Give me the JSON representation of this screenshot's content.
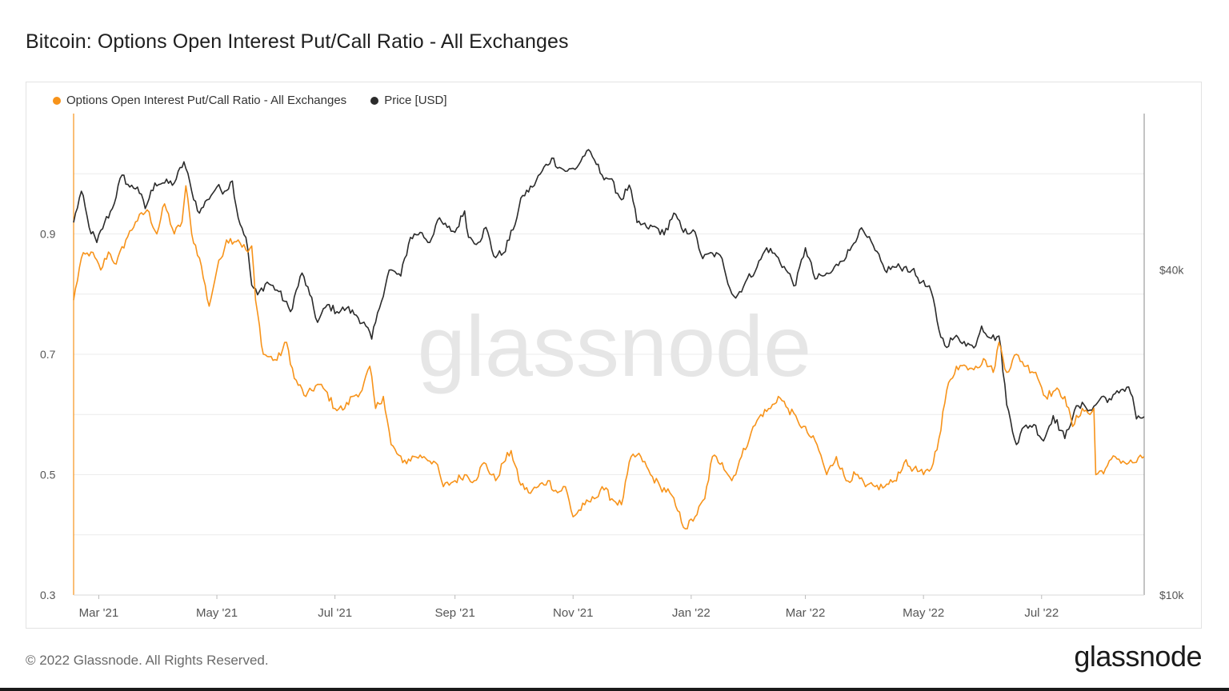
{
  "title": "Bitcoin: Options Open Interest Put/Call Ratio - All Exchanges",
  "footer": {
    "copyright": "© 2022 Glassnode. All Rights Reserved.",
    "logo": "glassnode"
  },
  "watermark": "glassnode",
  "colors": {
    "ratio": "#f7931a",
    "price": "#2b2b2b",
    "grid": "#ececec",
    "watermark": "#e6e6e6"
  },
  "chart_data": {
    "type": "line",
    "title": "Bitcoin: Options Open Interest Put/Call Ratio - All Exchanges",
    "legend": [
      "Options Open Interest Put/Call Ratio - All Exchanges",
      "Price [USD]"
    ],
    "legend_position": "top-left",
    "grid": true,
    "x_range": [
      "2021-02-16",
      "2022-08-23"
    ],
    "x_ticks": [
      {
        "date": "2021-03-01",
        "label": "Mar '21"
      },
      {
        "date": "2021-05-01",
        "label": "May '21"
      },
      {
        "date": "2021-07-01",
        "label": "Jul '21"
      },
      {
        "date": "2021-09-01",
        "label": "Sep '21"
      },
      {
        "date": "2021-11-01",
        "label": "Nov '21"
      },
      {
        "date": "2022-01-01",
        "label": "Jan '22"
      },
      {
        "date": "2022-03-01",
        "label": "Mar '22"
      },
      {
        "date": "2022-05-01",
        "label": "May '22"
      },
      {
        "date": "2022-07-01",
        "label": "Jul '22"
      }
    ],
    "y_left": {
      "ticks": [
        0.3,
        0.5,
        0.7,
        0.9
      ],
      "tick_labels": [
        "0.3",
        "0.5",
        "0.7",
        "0.9"
      ],
      "ylim": [
        0.3,
        1.1
      ]
    },
    "y_right": {
      "scale": "log",
      "ticks": [
        10000,
        40000
      ],
      "tick_labels": [
        "$10k",
        "$40k"
      ],
      "ylim": [
        10000,
        78000
      ]
    },
    "series": [
      {
        "name": "Options Open Interest Put/Call Ratio - All Exchanges",
        "axis": "left",
        "points": [
          [
            "2021-02-16",
            0.79
          ],
          [
            "2021-02-20",
            0.86
          ],
          [
            "2021-02-25",
            0.87
          ],
          [
            "2021-03-02",
            0.84
          ],
          [
            "2021-03-06",
            0.87
          ],
          [
            "2021-03-10",
            0.85
          ],
          [
            "2021-03-15",
            0.89
          ],
          [
            "2021-03-20",
            0.92
          ],
          [
            "2021-03-26",
            0.94
          ],
          [
            "2021-03-31",
            0.9
          ],
          [
            "2021-04-04",
            0.95
          ],
          [
            "2021-04-09",
            0.9
          ],
          [
            "2021-04-13",
            0.92
          ],
          [
            "2021-04-15",
            0.98
          ],
          [
            "2021-04-18",
            0.9
          ],
          [
            "2021-04-22",
            0.86
          ],
          [
            "2021-04-27",
            0.78
          ],
          [
            "2021-05-01",
            0.84
          ],
          [
            "2021-05-06",
            0.89
          ],
          [
            "2021-05-12",
            0.89
          ],
          [
            "2021-05-17",
            0.87
          ],
          [
            "2021-05-19",
            0.88
          ],
          [
            "2021-05-21",
            0.79
          ],
          [
            "2021-05-25",
            0.7
          ],
          [
            "2021-06-01",
            0.69
          ],
          [
            "2021-06-06",
            0.72
          ],
          [
            "2021-06-10",
            0.66
          ],
          [
            "2021-06-16",
            0.63
          ],
          [
            "2021-06-22",
            0.65
          ],
          [
            "2021-06-26",
            0.64
          ],
          [
            "2021-07-01",
            0.61
          ],
          [
            "2021-07-06",
            0.61
          ],
          [
            "2021-07-10",
            0.63
          ],
          [
            "2021-07-15",
            0.64
          ],
          [
            "2021-07-19",
            0.68
          ],
          [
            "2021-07-22",
            0.61
          ],
          [
            "2021-07-26",
            0.63
          ],
          [
            "2021-07-30",
            0.55
          ],
          [
            "2021-08-05",
            0.52
          ],
          [
            "2021-08-11",
            0.53
          ],
          [
            "2021-08-16",
            0.53
          ],
          [
            "2021-08-22",
            0.52
          ],
          [
            "2021-08-26",
            0.48
          ],
          [
            "2021-09-01",
            0.49
          ],
          [
            "2021-09-06",
            0.5
          ],
          [
            "2021-09-11",
            0.49
          ],
          [
            "2021-09-16",
            0.52
          ],
          [
            "2021-09-22",
            0.49
          ],
          [
            "2021-09-26",
            0.52
          ],
          [
            "2021-09-30",
            0.54
          ],
          [
            "2021-10-04",
            0.49
          ],
          [
            "2021-10-09",
            0.47
          ],
          [
            "2021-10-14",
            0.48
          ],
          [
            "2021-10-19",
            0.49
          ],
          [
            "2021-10-24",
            0.47
          ],
          [
            "2021-10-28",
            0.48
          ],
          [
            "2021-11-01",
            0.43
          ],
          [
            "2021-11-07",
            0.45
          ],
          [
            "2021-11-12",
            0.46
          ],
          [
            "2021-11-16",
            0.48
          ],
          [
            "2021-11-21",
            0.46
          ],
          [
            "2021-11-26",
            0.45
          ],
          [
            "2021-12-01",
            0.53
          ],
          [
            "2021-12-06",
            0.53
          ],
          [
            "2021-12-11",
            0.5
          ],
          [
            "2021-12-16",
            0.48
          ],
          [
            "2021-12-21",
            0.47
          ],
          [
            "2021-12-25",
            0.44
          ],
          [
            "2021-12-29",
            0.41
          ],
          [
            "2022-01-03",
            0.43
          ],
          [
            "2022-01-08",
            0.46
          ],
          [
            "2022-01-12",
            0.53
          ],
          [
            "2022-01-17",
            0.52
          ],
          [
            "2022-01-22",
            0.49
          ],
          [
            "2022-01-27",
            0.53
          ],
          [
            "2022-02-01",
            0.57
          ],
          [
            "2022-02-06",
            0.6
          ],
          [
            "2022-02-11",
            0.61
          ],
          [
            "2022-02-15",
            0.63
          ],
          [
            "2022-02-20",
            0.61
          ],
          [
            "2022-02-25",
            0.59
          ],
          [
            "2022-03-02",
            0.57
          ],
          [
            "2022-03-07",
            0.55
          ],
          [
            "2022-03-12",
            0.5
          ],
          [
            "2022-03-17",
            0.53
          ],
          [
            "2022-03-22",
            0.49
          ],
          [
            "2022-03-27",
            0.5
          ],
          [
            "2022-04-01",
            0.48
          ],
          [
            "2022-04-06",
            0.48
          ],
          [
            "2022-04-11",
            0.48
          ],
          [
            "2022-04-16",
            0.49
          ],
          [
            "2022-04-21",
            0.52
          ],
          [
            "2022-04-26",
            0.51
          ],
          [
            "2022-05-01",
            0.5
          ],
          [
            "2022-05-05",
            0.51
          ],
          [
            "2022-05-09",
            0.56
          ],
          [
            "2022-05-13",
            0.64
          ],
          [
            "2022-05-18",
            0.68
          ],
          [
            "2022-05-23",
            0.68
          ],
          [
            "2022-05-28",
            0.68
          ],
          [
            "2022-06-02",
            0.69
          ],
          [
            "2022-06-06",
            0.67
          ],
          [
            "2022-06-09",
            0.72
          ],
          [
            "2022-06-13",
            0.67
          ],
          [
            "2022-06-18",
            0.7
          ],
          [
            "2022-06-23",
            0.68
          ],
          [
            "2022-06-28",
            0.67
          ],
          [
            "2022-07-03",
            0.63
          ],
          [
            "2022-07-08",
            0.64
          ],
          [
            "2022-07-13",
            0.63
          ],
          [
            "2022-07-17",
            0.58
          ],
          [
            "2022-07-22",
            0.61
          ],
          [
            "2022-07-26",
            0.6
          ],
          [
            "2022-07-28",
            0.61
          ],
          [
            "2022-07-29",
            0.5
          ],
          [
            "2022-08-03",
            0.51
          ],
          [
            "2022-08-08",
            0.53
          ],
          [
            "2022-08-13",
            0.52
          ],
          [
            "2022-08-18",
            0.52
          ],
          [
            "2022-08-23",
            0.53
          ]
        ]
      },
      {
        "name": "Price [USD]",
        "axis": "right",
        "points": [
          [
            "2021-02-16",
            49000
          ],
          [
            "2021-02-20",
            56000
          ],
          [
            "2021-02-24",
            48000
          ],
          [
            "2021-02-28",
            45000
          ],
          [
            "2021-03-04",
            49000
          ],
          [
            "2021-03-08",
            52000
          ],
          [
            "2021-03-13",
            60000
          ],
          [
            "2021-03-17",
            57000
          ],
          [
            "2021-03-21",
            57000
          ],
          [
            "2021-03-25",
            52000
          ],
          [
            "2021-03-30",
            58000
          ],
          [
            "2021-04-04",
            58000
          ],
          [
            "2021-04-09",
            58000
          ],
          [
            "2021-04-14",
            63500
          ],
          [
            "2021-04-18",
            56000
          ],
          [
            "2021-04-22",
            51000
          ],
          [
            "2021-04-26",
            54000
          ],
          [
            "2021-05-01",
            57000
          ],
          [
            "2021-05-05",
            56000
          ],
          [
            "2021-05-09",
            58500
          ],
          [
            "2021-05-12",
            50000
          ],
          [
            "2021-05-16",
            46000
          ],
          [
            "2021-05-19",
            37500
          ],
          [
            "2021-05-22",
            36000
          ],
          [
            "2021-05-27",
            38000
          ],
          [
            "2021-06-02",
            36500
          ],
          [
            "2021-06-08",
            33500
          ],
          [
            "2021-06-14",
            39500
          ],
          [
            "2021-06-18",
            36000
          ],
          [
            "2021-06-22",
            32000
          ],
          [
            "2021-06-27",
            34500
          ],
          [
            "2021-07-02",
            33500
          ],
          [
            "2021-07-07",
            34000
          ],
          [
            "2021-07-12",
            33000
          ],
          [
            "2021-07-17",
            31500
          ],
          [
            "2021-07-20",
            29800
          ],
          [
            "2021-07-24",
            34000
          ],
          [
            "2021-07-29",
            40000
          ],
          [
            "2021-08-04",
            39000
          ],
          [
            "2021-08-09",
            46000
          ],
          [
            "2021-08-14",
            47000
          ],
          [
            "2021-08-19",
            45000
          ],
          [
            "2021-08-23",
            49500
          ],
          [
            "2021-08-28",
            48000
          ],
          [
            "2021-09-01",
            47000
          ],
          [
            "2021-09-06",
            51500
          ],
          [
            "2021-09-08",
            46000
          ],
          [
            "2021-09-13",
            45000
          ],
          [
            "2021-09-17",
            48000
          ],
          [
            "2021-09-21",
            42500
          ],
          [
            "2021-09-26",
            43000
          ],
          [
            "2021-10-01",
            47500
          ],
          [
            "2021-10-06",
            55000
          ],
          [
            "2021-10-11",
            57000
          ],
          [
            "2021-10-16",
            61000
          ],
          [
            "2021-10-21",
            64500
          ],
          [
            "2021-10-25",
            62000
          ],
          [
            "2021-10-29",
            61000
          ],
          [
            "2021-11-03",
            62000
          ],
          [
            "2021-11-08",
            66500
          ],
          [
            "2021-11-12",
            64000
          ],
          [
            "2021-11-16",
            60000
          ],
          [
            "2021-11-20",
            59000
          ],
          [
            "2021-11-26",
            54000
          ],
          [
            "2021-11-30",
            57500
          ],
          [
            "2021-12-04",
            49000
          ],
          [
            "2021-12-09",
            48000
          ],
          [
            "2021-12-14",
            48000
          ],
          [
            "2021-12-18",
            46500
          ],
          [
            "2021-12-23",
            51000
          ],
          [
            "2021-12-28",
            47000
          ],
          [
            "2022-01-02",
            47500
          ],
          [
            "2022-01-07",
            42000
          ],
          [
            "2022-01-12",
            43000
          ],
          [
            "2022-01-17",
            42000
          ],
          [
            "2022-01-21",
            37000
          ],
          [
            "2022-01-24",
            35500
          ],
          [
            "2022-01-29",
            38000
          ],
          [
            "2022-02-04",
            40500
          ],
          [
            "2022-02-09",
            44000
          ],
          [
            "2022-02-14",
            42500
          ],
          [
            "2022-02-19",
            40000
          ],
          [
            "2022-02-24",
            37500
          ],
          [
            "2022-03-01",
            44000
          ],
          [
            "2022-03-06",
            38500
          ],
          [
            "2022-03-10",
            39000
          ],
          [
            "2022-03-14",
            39500
          ],
          [
            "2022-03-19",
            41500
          ],
          [
            "2022-03-24",
            43500
          ],
          [
            "2022-03-29",
            47500
          ],
          [
            "2022-04-02",
            46000
          ],
          [
            "2022-04-06",
            43500
          ],
          [
            "2022-04-11",
            40000
          ],
          [
            "2022-04-16",
            40500
          ],
          [
            "2022-04-21",
            40500
          ],
          [
            "2022-04-25",
            40000
          ],
          [
            "2022-04-30",
            38000
          ],
          [
            "2022-05-05",
            36500
          ],
          [
            "2022-05-09",
            31000
          ],
          [
            "2022-05-12",
            29000
          ],
          [
            "2022-05-17",
            30000
          ],
          [
            "2022-05-22",
            29500
          ],
          [
            "2022-05-27",
            28700
          ],
          [
            "2022-05-31",
            31500
          ],
          [
            "2022-06-05",
            29900
          ],
          [
            "2022-06-09",
            30200
          ],
          [
            "2022-06-13",
            22500
          ],
          [
            "2022-06-18",
            19000
          ],
          [
            "2022-06-22",
            20500
          ],
          [
            "2022-06-27",
            20700
          ],
          [
            "2022-07-02",
            19300
          ],
          [
            "2022-07-07",
            21500
          ],
          [
            "2022-07-13",
            19500
          ],
          [
            "2022-07-18",
            22000
          ],
          [
            "2022-07-23",
            22500
          ],
          [
            "2022-07-27",
            22000
          ],
          [
            "2022-08-01",
            23300
          ],
          [
            "2022-08-06",
            23000
          ],
          [
            "2022-08-11",
            24000
          ],
          [
            "2022-08-15",
            24300
          ],
          [
            "2022-08-17",
            23300
          ],
          [
            "2022-08-19",
            21200
          ],
          [
            "2022-08-23",
            21400
          ]
        ]
      }
    ]
  }
}
